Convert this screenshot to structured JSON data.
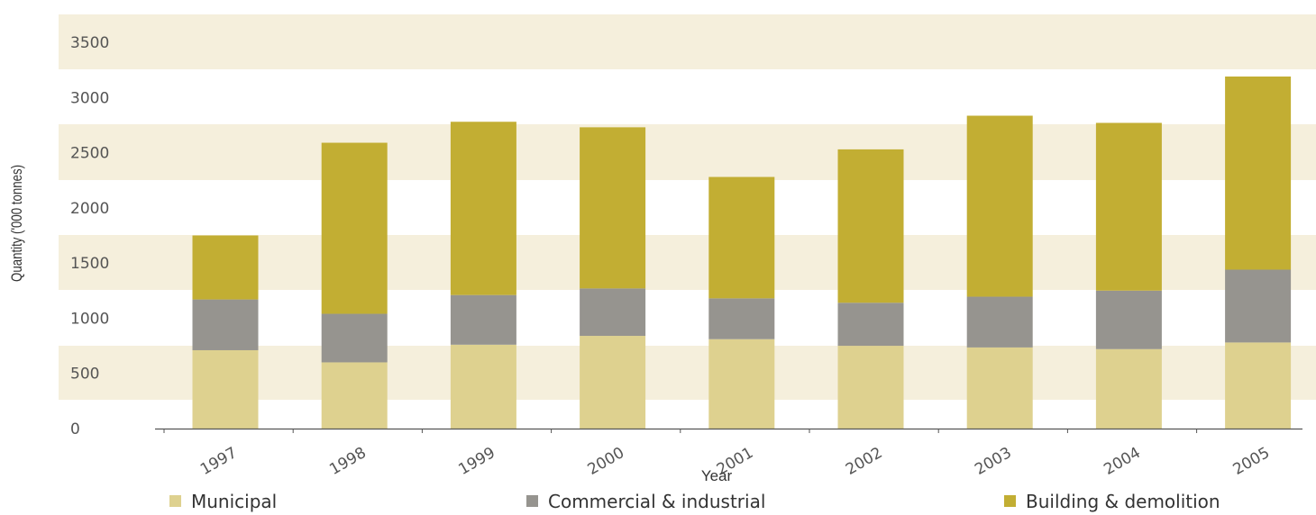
{
  "chart_data": {
    "type": "bar",
    "stacked": true,
    "categories": [
      "1997",
      "1998",
      "1999",
      "2000",
      "2001",
      "2002",
      "2003",
      "2004",
      "2005"
    ],
    "series": [
      {
        "name": "Municipal",
        "color": "#ded18f",
        "values": [
          710,
          600,
          760,
          840,
          810,
          750,
          735,
          720,
          780
        ]
      },
      {
        "name": "Commercial & industrial",
        "color": "#96948f",
        "values": [
          460,
          440,
          450,
          430,
          370,
          390,
          460,
          530,
          660
        ]
      },
      {
        "name": "Building & demolition",
        "color": "#c2ae33",
        "values": [
          580,
          1550,
          1570,
          1460,
          1100,
          1390,
          1640,
          1520,
          1750
        ]
      }
    ],
    "xlabel": "Year",
    "ylabel": "Quantity ('000 tonnes)",
    "ylim": [
      0,
      3500
    ],
    "yticks": [
      0,
      500,
      1000,
      1500,
      2000,
      2500,
      3000,
      3500
    ],
    "grid": "alternating horizontal bands",
    "band_color": "#f5efdc",
    "legend_position": "bottom"
  }
}
